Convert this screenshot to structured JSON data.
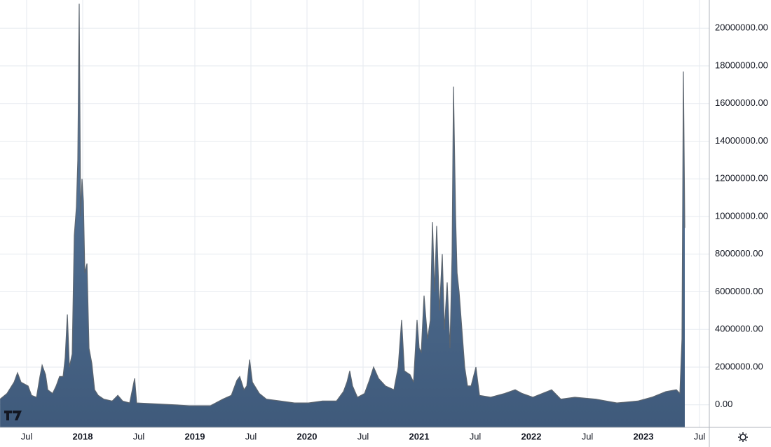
{
  "chart_data": {
    "type": "area",
    "x": [
      2017.263,
      2017.325,
      2017.388,
      2017.419,
      2017.45,
      2017.513,
      2017.544,
      2017.588,
      2017.619,
      2017.638,
      2017.669,
      2017.688,
      2017.731,
      2017.763,
      2017.794,
      2017.825,
      2017.844,
      2017.863,
      2017.881,
      2017.906,
      2017.925,
      2017.944,
      2017.956,
      2017.969,
      2017.981,
      2017.994,
      2018.006,
      2018.019,
      2018.038,
      2018.056,
      2018.081,
      2018.106,
      2018.138,
      2018.188,
      2018.263,
      2018.313,
      2018.356,
      2018.419,
      2018.463,
      2018.481,
      2018.638,
      2018.825,
      2018.95,
      2019.138,
      2019.25,
      2019.325,
      2019.375,
      2019.4,
      2019.438,
      2019.463,
      2019.488,
      2019.513,
      2019.575,
      2019.638,
      2019.763,
      2019.888,
      2020.013,
      2020.138,
      2020.263,
      2020.325,
      2020.356,
      2020.381,
      2020.406,
      2020.45,
      2020.513,
      2020.556,
      2020.594,
      2020.638,
      2020.7,
      2020.775,
      2020.813,
      2020.844,
      2020.869,
      2020.919,
      2020.95,
      2020.981,
      2021.0,
      2021.019,
      2021.044,
      2021.075,
      2021.1,
      2021.119,
      2021.138,
      2021.156,
      2021.181,
      2021.206,
      2021.225,
      2021.25,
      2021.275,
      2021.294,
      2021.306,
      2021.325,
      2021.338,
      2021.356,
      2021.381,
      2021.406,
      2021.431,
      2021.463,
      2021.506,
      2021.538,
      2021.638,
      2021.763,
      2021.856,
      2021.919,
      2022.013,
      2022.181,
      2022.263,
      2022.388,
      2022.575,
      2022.763,
      2022.95,
      2023.075,
      2023.2,
      2023.294,
      2023.325,
      2023.344,
      2023.356,
      2023.369
    ],
    "series": [
      {
        "color": "#4e6b8d",
        "values": [
          300000,
          600000,
          1200000,
          1700000,
          1200000,
          1000000,
          500000,
          400000,
          1500000,
          2100000,
          1600000,
          800000,
          600000,
          1000000,
          1500000,
          1500000,
          2500000,
          4800000,
          2000000,
          2700000,
          9000000,
          10500000,
          13000000,
          21300000,
          10000000,
          12000000,
          10800000,
          7000000,
          7500000,
          3000000,
          2200000,
          800000,
          500000,
          300000,
          200000,
          500000,
          200000,
          100000,
          1400000,
          100000,
          50000,
          0,
          -50000,
          -50000,
          300000,
          500000,
          1300000,
          1500000,
          800000,
          1000000,
          2400000,
          1200000,
          600000,
          300000,
          200000,
          100000,
          100000,
          200000,
          200000,
          700000,
          1200000,
          1800000,
          1000000,
          400000,
          600000,
          1300000,
          2000000,
          1400000,
          1000000,
          800000,
          2000000,
          4500000,
          1800000,
          1600000,
          1200000,
          4500000,
          3000000,
          2800000,
          5800000,
          3500000,
          4500000,
          9700000,
          6000000,
          9500000,
          5000000,
          8000000,
          4000000,
          6500000,
          3000000,
          8000000,
          16900000,
          10000000,
          7000000,
          6000000,
          4000000,
          2000000,
          1000000,
          1000000,
          2000000,
          500000,
          400000,
          600000,
          800000,
          600000,
          400000,
          800000,
          300000,
          400000,
          300000,
          100000,
          200000,
          400000,
          700000,
          800000,
          600000,
          3500000,
          17700000,
          9400000
        ]
      }
    ],
    "xlim": [
      2017.2625,
      2023.5875
    ],
    "xticks": [
      {
        "value": 2017.5,
        "label": "Jul"
      },
      2018,
      {
        "value": 2018.5,
        "label": "Jul"
      },
      2019,
      {
        "value": 2019.5,
        "label": "Jul"
      },
      2020,
      {
        "value": 2020.5,
        "label": "Jul"
      },
      2021,
      {
        "value": 2021.5,
        "label": "Jul"
      },
      2022,
      {
        "value": 2022.5,
        "label": "Jul"
      },
      2023,
      {
        "value": 2023.5,
        "label": "Jul"
      }
    ],
    "ylim": [
      -1200000,
      21500000
    ],
    "yticks": [
      {
        "value": 0,
        "label": "0.00"
      },
      {
        "value": 2000000,
        "label": "2000000.00"
      },
      {
        "value": 4000000,
        "label": "4000000.00"
      },
      {
        "value": 6000000,
        "label": "6000000.00"
      },
      {
        "value": 8000000,
        "label": "8000000.00"
      },
      {
        "value": 10000000,
        "label": "10000000.00"
      },
      {
        "value": 12000000,
        "label": "12000000.00"
      },
      {
        "value": 14000000,
        "label": "14000000.00"
      },
      {
        "value": 16000000,
        "label": "16000000.00"
      },
      {
        "value": 18000000,
        "label": "18000000.00"
      },
      {
        "value": 20000000,
        "label": "20000000.00"
      }
    ],
    "grid": true
  }
}
